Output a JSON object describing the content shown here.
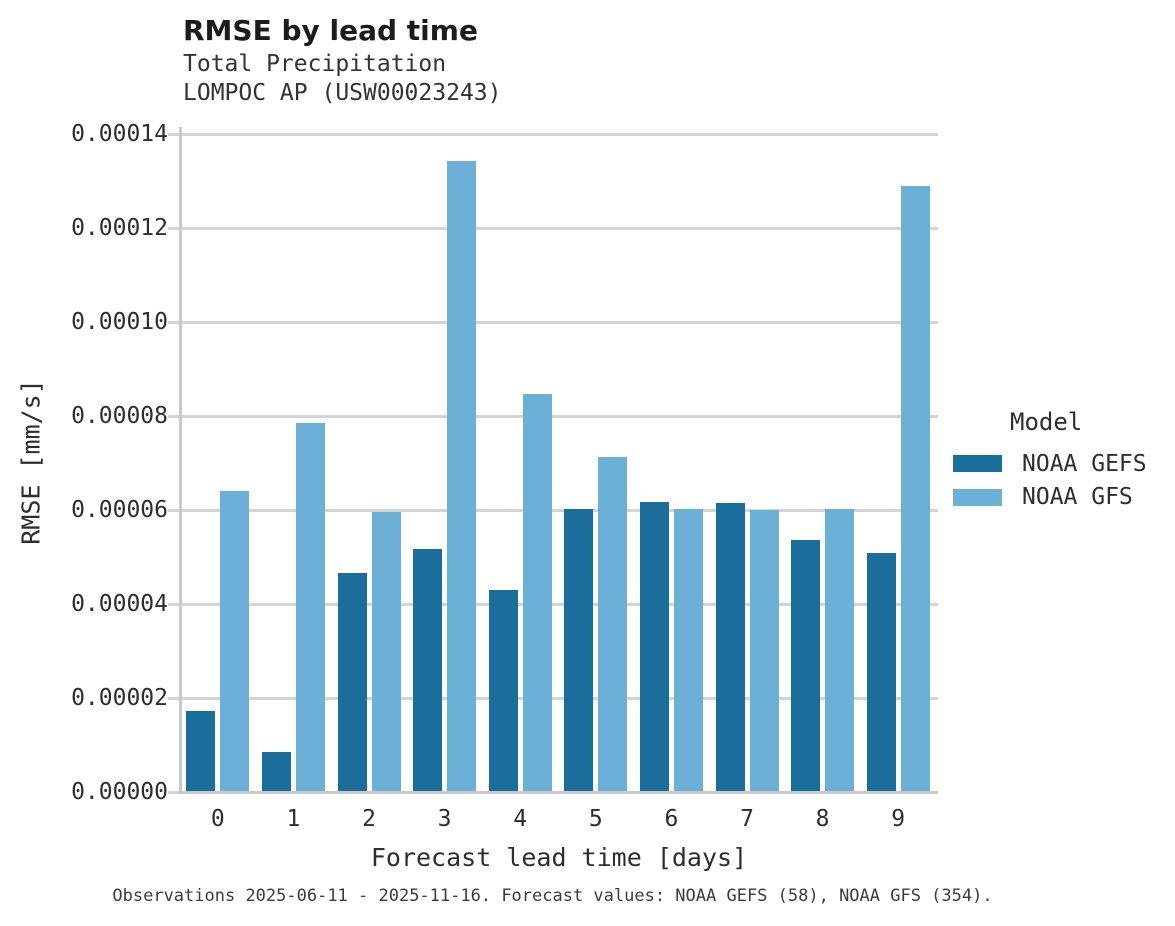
{
  "header": {
    "title": "RMSE by lead time",
    "subtitle_line1": "Total Precipitation",
    "subtitle_line2": "LOMPOC AP (USW00023243)"
  },
  "chart_data": {
    "type": "bar",
    "title": "RMSE by lead time",
    "subtitle": [
      "Total Precipitation",
      "LOMPOC AP (USW00023243)"
    ],
    "categories": [
      "0",
      "1",
      "2",
      "3",
      "4",
      "5",
      "6",
      "7",
      "8",
      "9"
    ],
    "series": [
      {
        "name": "NOAA GEFS",
        "color": "#1B6D9C",
        "values": [
          1.72e-05,
          8.5e-06,
          4.65e-05,
          5.18e-05,
          4.3e-05,
          6.03e-05,
          6.18e-05,
          6.15e-05,
          5.37e-05,
          5.09e-05
        ]
      },
      {
        "name": "NOAA GFS",
        "color": "#6CB0D7",
        "values": [
          6.41e-05,
          7.85e-05,
          5.96e-05,
          0.0001343,
          8.46e-05,
          7.13e-05,
          6.02e-05,
          6.01e-05,
          6.03e-05,
          0.000129
        ]
      }
    ],
    "xlabel": "Forecast lead time [days]",
    "ylabel": "RMSE [mm/s]",
    "ylim": [
      0,
      0.00014
    ],
    "yticks": [
      0,
      2e-05,
      4e-05,
      6e-05,
      8e-05,
      0.0001,
      0.00012,
      0.00014
    ],
    "ytick_labels": [
      "0.00000",
      "0.00002",
      "0.00004",
      "0.00006",
      "0.00008",
      "0.00010",
      "0.00012",
      "0.00014"
    ],
    "grid": "horizontal",
    "legend_title": "Model",
    "legend_position": "right"
  },
  "footnote": {
    "text": "Observations 2025-06-11 - 2025-11-16. Forecast values: NOAA GEFS (58), NOAA GFS (354)."
  }
}
